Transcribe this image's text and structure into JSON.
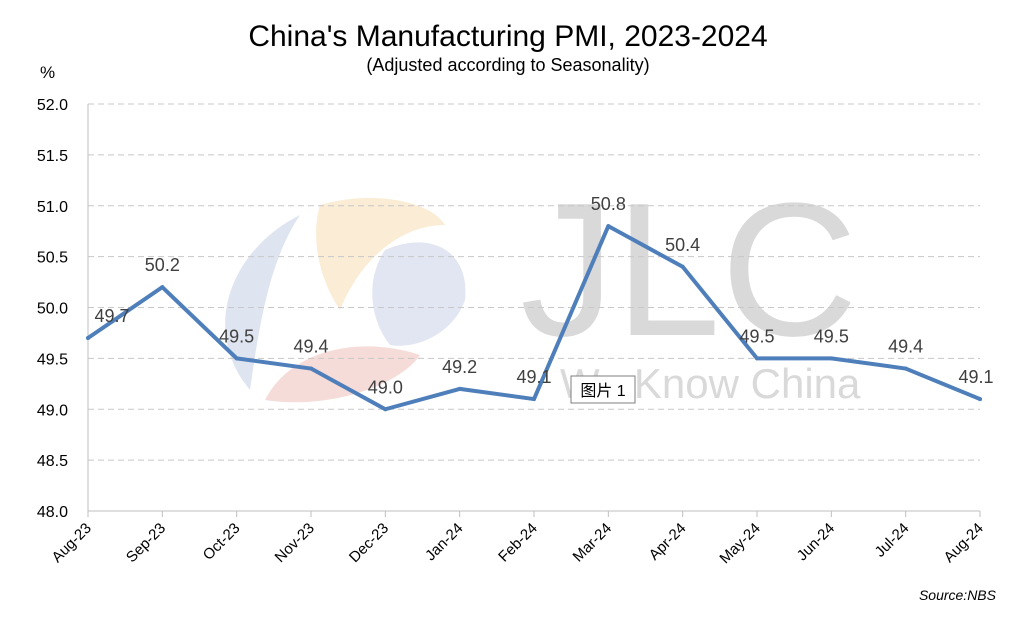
{
  "chart_data": {
    "type": "line",
    "title": "China's Manufacturing PMI, 2023-2024",
    "subtitle": "(Adjusted according to Seasonality)",
    "ylabel": "%",
    "xlabel": "",
    "ylim": [
      48.0,
      52.0
    ],
    "y_ticks": [
      "48.0",
      "48.5",
      "49.0",
      "49.5",
      "50.0",
      "50.5",
      "51.0",
      "51.5",
      "52.0"
    ],
    "grid": true,
    "categories": [
      "Aug-23",
      "Sep-23",
      "Oct-23",
      "Nov-23",
      "Dec-23",
      "Jan-24",
      "Feb-24",
      "Mar-24",
      "Apr-24",
      "May-24",
      "Jun-24",
      "Jul-24",
      "Aug-24"
    ],
    "series": [
      {
        "values": [
          49.7,
          50.2,
          49.5,
          49.4,
          49.0,
          49.2,
          49.1,
          50.8,
          50.4,
          49.5,
          49.5,
          49.4,
          49.1
        ],
        "labels": [
          "49.7",
          "50.2",
          "49.5",
          "49.4",
          "49.0",
          "49.2",
          "49.1",
          "50.8",
          "50.4",
          "49.5",
          "49.5",
          "49.4",
          "49.1"
        ],
        "color": "#4f7fba"
      }
    ],
    "source": "Source:NBS"
  },
  "watermark": {
    "text": "JLC",
    "subtext": "We Know China",
    "colors": [
      "#dfe4f1",
      "#fbecd5",
      "#f5dcd9"
    ]
  },
  "caption_tag": "图片 1"
}
